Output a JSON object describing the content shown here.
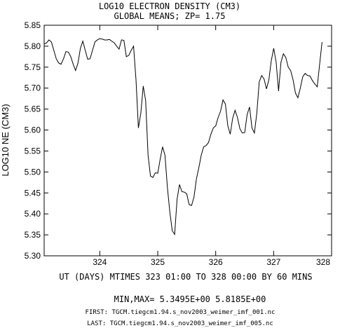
{
  "chart_data": {
    "type": "line",
    "title": "LOG10 ELECTRON DENSITY (CM3)",
    "subtitle": "GLOBAL MEANS; ZP=  1.75",
    "ylabel": "LOG10 NE (CM3)",
    "xlabel": "UT (DAYS) MTIMES 323 01:00 TO 328 00:00 BY   60 MINS",
    "xlim": [
      323.04,
      328.0
    ],
    "ylim": [
      5.3,
      5.85
    ],
    "xticks": [
      "324",
      "325",
      "326",
      "327",
      "328"
    ],
    "yticks": [
      "5.30",
      "5.35",
      "5.40",
      "5.45",
      "5.50",
      "5.55",
      "5.60",
      "5.65",
      "5.70",
      "5.75",
      "5.80",
      "5.85"
    ],
    "grid": false,
    "x_start": 323.04,
    "x_step": 0.0417,
    "values": [
      5.805,
      5.808,
      5.815,
      5.81,
      5.79,
      5.77,
      5.76,
      5.757,
      5.77,
      5.787,
      5.786,
      5.775,
      5.757,
      5.742,
      5.76,
      5.795,
      5.812,
      5.79,
      5.769,
      5.77,
      5.79,
      5.81,
      5.815,
      5.818,
      5.817,
      5.815,
      5.815,
      5.816,
      5.812,
      5.808,
      5.8,
      5.793,
      5.815,
      5.814,
      5.775,
      5.778,
      5.79,
      5.8,
      5.72,
      5.605,
      5.64,
      5.705,
      5.67,
      5.54,
      5.49,
      5.487,
      5.498,
      5.497,
      5.53,
      5.56,
      5.54,
      5.463,
      5.405,
      5.36,
      5.351,
      5.435,
      5.47,
      5.453,
      5.452,
      5.448,
      5.422,
      5.42,
      5.44,
      5.483,
      5.51,
      5.54,
      5.56,
      5.563,
      5.57,
      5.59,
      5.605,
      5.61,
      5.63,
      5.645,
      5.672,
      5.662,
      5.61,
      5.59,
      5.628,
      5.647,
      5.63,
      5.603,
      5.593,
      5.594,
      5.637,
      5.655,
      5.605,
      5.593,
      5.64,
      5.715,
      5.73,
      5.722,
      5.698,
      5.72,
      5.766,
      5.795,
      5.762,
      5.693,
      5.762,
      5.782,
      5.773,
      5.75,
      5.742,
      5.72,
      5.688,
      5.677,
      5.7,
      5.727,
      5.735,
      5.73,
      5.729,
      5.718,
      5.71,
      5.703,
      5.757,
      5.81
    ],
    "footer": {
      "minmax": "MIN,MAX=  5.3495E+00   5.8185E+00",
      "first": "FIRST: TGCM.tiegcm1.94.s_nov2003_weimer_imf_001.nc",
      "last": "LAST:  TGCM.tiegcm1.94.s_nov2003_weimer_imf_005.nc"
    }
  }
}
